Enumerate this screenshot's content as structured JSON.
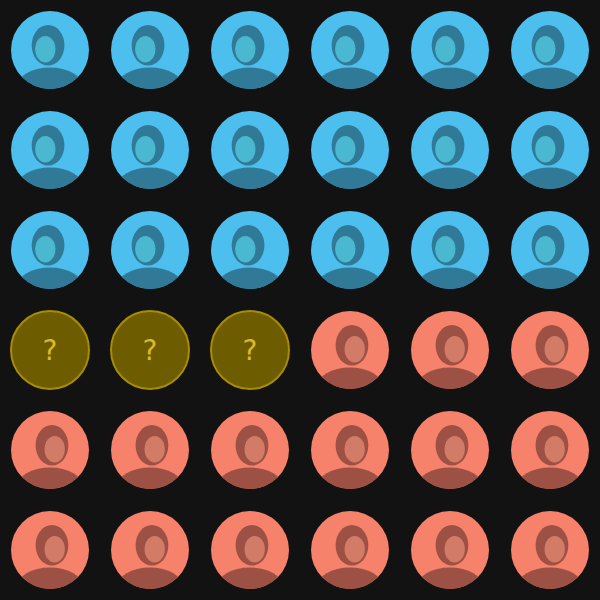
{
  "chart_data": {
    "type": "waffle",
    "categories": [
      null,
      "?",
      null
    ],
    "values": [
      18,
      3,
      15
    ],
    "colors": [
      "#4dbfee",
      "#6e5c00",
      "#f7826c"
    ]
  }
}
